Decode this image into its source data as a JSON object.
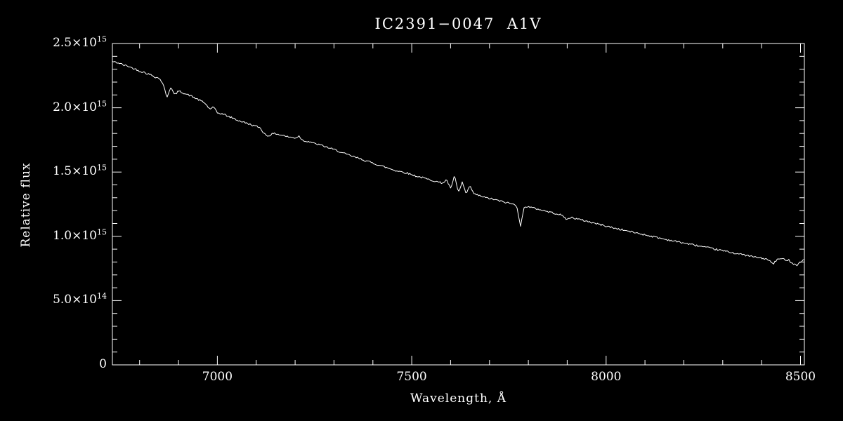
{
  "chart_data": {
    "type": "line",
    "title": "IC2391−0047  A1V",
    "xlabel": "Wavelength, Å",
    "ylabel": "Relative flux",
    "xlim": [
      6730,
      8510
    ],
    "ylim_1e15": [
      0,
      2.5
    ],
    "y_scale": "1e15",
    "grid": false,
    "legend": "none",
    "background_color": "#000000",
    "axis_color": "#ffffff",
    "line_color": "#ffffff",
    "x_major_ticks": [
      7000,
      7500,
      8000,
      8500
    ],
    "x_minor_step": 100,
    "y_major_step_1e15": 0.5,
    "y_minor_step_1e15": 0.1,
    "x_tick_labels": [
      {
        "value": 7000,
        "label": "7000"
      },
      {
        "value": 7500,
        "label": "7500"
      },
      {
        "value": 8000,
        "label": "8000"
      },
      {
        "value": 8500,
        "label": "8500"
      }
    ],
    "y_tick_labels": [
      {
        "value_1e15": 0.0,
        "mantissa": "0",
        "exponent": ""
      },
      {
        "value_1e15": 0.5,
        "mantissa": "5.0×10",
        "exponent": "14"
      },
      {
        "value_1e15": 1.0,
        "mantissa": "1.0×10",
        "exponent": "15"
      },
      {
        "value_1e15": 1.5,
        "mantissa": "1.5×10",
        "exponent": "15"
      },
      {
        "value_1e15": 2.0,
        "mantissa": "2.0×10",
        "exponent": "15"
      },
      {
        "value_1e15": 2.5,
        "mantissa": "2.5×10",
        "exponent": "15"
      }
    ],
    "noise_sigma_1e15": 0.007,
    "noise_seed": 42,
    "series": [
      {
        "name": "spectrum",
        "x_start": 6730,
        "x_step": 10,
        "y_1e15": [
          2.36,
          2.352,
          2.345,
          2.33,
          2.325,
          2.31,
          2.3,
          2.285,
          2.278,
          2.265,
          2.255,
          2.24,
          2.23,
          2.19,
          2.08,
          2.16,
          2.1,
          2.13,
          2.12,
          2.105,
          2.095,
          2.08,
          2.065,
          2.05,
          2.03,
          1.99,
          2.005,
          1.96,
          1.955,
          1.945,
          1.93,
          1.92,
          1.905,
          1.895,
          1.885,
          1.875,
          1.865,
          1.855,
          1.845,
          1.8,
          1.78,
          1.795,
          1.8,
          1.79,
          1.785,
          1.775,
          1.77,
          1.765,
          1.78,
          1.745,
          1.74,
          1.735,
          1.72,
          1.715,
          1.705,
          1.695,
          1.685,
          1.675,
          1.665,
          1.65,
          1.64,
          1.63,
          1.62,
          1.61,
          1.6,
          1.59,
          1.58,
          1.57,
          1.56,
          1.55,
          1.54,
          1.53,
          1.52,
          1.51,
          1.505,
          1.498,
          1.49,
          1.48,
          1.47,
          1.462,
          1.455,
          1.445,
          1.438,
          1.43,
          1.42,
          1.415,
          1.44,
          1.37,
          1.47,
          1.34,
          1.42,
          1.33,
          1.39,
          1.33,
          1.32,
          1.31,
          1.3,
          1.295,
          1.288,
          1.28,
          1.272,
          1.265,
          1.258,
          1.25,
          1.24,
          1.08,
          1.235,
          1.23,
          1.222,
          1.215,
          1.208,
          1.2,
          1.192,
          1.185,
          1.178,
          1.17,
          1.155,
          1.13,
          1.148,
          1.14,
          1.132,
          1.125,
          1.118,
          1.11,
          1.102,
          1.095,
          1.088,
          1.08,
          1.072,
          1.065,
          1.058,
          1.052,
          1.045,
          1.038,
          1.032,
          1.025,
          1.018,
          1.012,
          1.005,
          0.998,
          0.992,
          0.985,
          0.978,
          0.972,
          0.966,
          0.96,
          0.954,
          0.948,
          0.942,
          0.936,
          0.93,
          0.924,
          0.918,
          0.912,
          0.906,
          0.9,
          0.894,
          0.888,
          0.882,
          0.876,
          0.87,
          0.864,
          0.858,
          0.852,
          0.846,
          0.84,
          0.835,
          0.83,
          0.825,
          0.81,
          0.785,
          0.82,
          0.825,
          0.82,
          0.815,
          0.79,
          0.775,
          0.8,
          0.82
        ]
      }
    ]
  }
}
